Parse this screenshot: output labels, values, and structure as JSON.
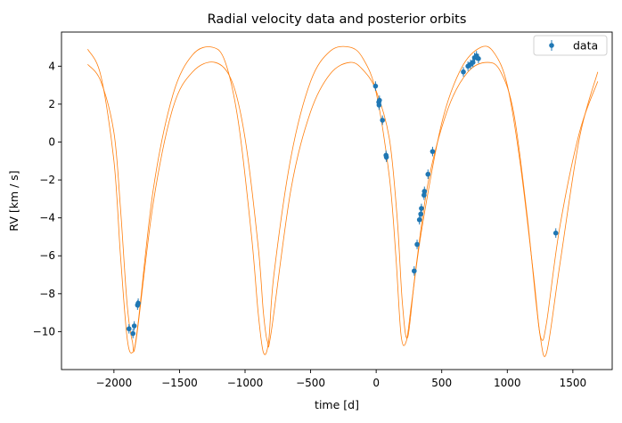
{
  "chart_data": {
    "type": "scatter",
    "title": "Radial velocity data and posterior orbits",
    "xlabel": "time [d]",
    "ylabel": "RV [km / s]",
    "xlim": [
      -2400,
      1800
    ],
    "ylim": [
      -12.0,
      5.8
    ],
    "xticks": [
      -2000,
      -1500,
      -1000,
      -500,
      0,
      500,
      1000,
      1500
    ],
    "yticks": [
      -10,
      -8,
      -6,
      -4,
      -2,
      0,
      2,
      4
    ],
    "grid": false,
    "legend": {
      "position": "top-right",
      "entries": [
        "data"
      ]
    },
    "colors": {
      "data": "#1f77b4",
      "orbits": "#ff7f0e"
    },
    "series": [
      {
        "name": "data",
        "kind": "errorbar",
        "points": [
          {
            "x": -1885,
            "y": -9.85,
            "err": 0.25
          },
          {
            "x": -1855,
            "y": -10.1,
            "err": 0.25
          },
          {
            "x": -1845,
            "y": -9.7,
            "err": 0.25
          },
          {
            "x": -1820,
            "y": -8.6,
            "err": 0.25
          },
          {
            "x": -1815,
            "y": -8.5,
            "err": 0.25
          },
          {
            "x": -5,
            "y": 2.95,
            "err": 0.25
          },
          {
            "x": 20,
            "y": 2.1,
            "err": 0.25
          },
          {
            "x": 22,
            "y": 1.95,
            "err": 0.25
          },
          {
            "x": 25,
            "y": 2.2,
            "err": 0.25
          },
          {
            "x": 48,
            "y": 1.15,
            "err": 0.25
          },
          {
            "x": 75,
            "y": -0.7,
            "err": 0.25
          },
          {
            "x": 78,
            "y": -0.8,
            "err": 0.25
          },
          {
            "x": 290,
            "y": -6.8,
            "err": 0.25
          },
          {
            "x": 312,
            "y": -5.4,
            "err": 0.25
          },
          {
            "x": 330,
            "y": -4.1,
            "err": 0.25
          },
          {
            "x": 340,
            "y": -3.8,
            "err": 0.25
          },
          {
            "x": 345,
            "y": -3.5,
            "err": 0.25
          },
          {
            "x": 365,
            "y": -2.8,
            "err": 0.25
          },
          {
            "x": 368,
            "y": -2.6,
            "err": 0.25
          },
          {
            "x": 395,
            "y": -1.7,
            "err": 0.25
          },
          {
            "x": 430,
            "y": -0.5,
            "err": 0.25
          },
          {
            "x": 665,
            "y": 3.7,
            "err": 0.25
          },
          {
            "x": 700,
            "y": 4.0,
            "err": 0.25
          },
          {
            "x": 720,
            "y": 4.1,
            "err": 0.25
          },
          {
            "x": 738,
            "y": 4.2,
            "err": 0.25
          },
          {
            "x": 750,
            "y": 4.45,
            "err": 0.25
          },
          {
            "x": 765,
            "y": 4.55,
            "err": 0.25
          },
          {
            "x": 780,
            "y": 4.4,
            "err": 0.25
          },
          {
            "x": 1370,
            "y": -4.8,
            "err": 0.25
          }
        ]
      },
      {
        "name": "",
        "kind": "line",
        "x": [
          -2200,
          -2100,
          -2000,
          -1950,
          -1900,
          -1860,
          -1820,
          -1700,
          -1550,
          -1400,
          -1250,
          -1150,
          -1050,
          -950,
          -900,
          -860,
          -820,
          -780,
          -650,
          -500,
          -350,
          -200,
          -100,
          0,
          100,
          150,
          190,
          230,
          270,
          350,
          500,
          650,
          800,
          900,
          1000,
          1100,
          1200,
          1250,
          1300,
          1400,
          1550,
          1690
        ],
        "y": [
          4.9,
          3.5,
          -1.0,
          -6.0,
          -10.3,
          -11.1,
          -9.8,
          -2.5,
          2.5,
          4.6,
          5.0,
          4.2,
          1.0,
          -5.0,
          -9.0,
          -11.1,
          -10.5,
          -7.0,
          -0.8,
          3.2,
          4.8,
          5.0,
          4.4,
          2.6,
          -1.8,
          -6.0,
          -10.2,
          -10.5,
          -8.5,
          -4.5,
          1.0,
          3.9,
          5.0,
          4.7,
          3.0,
          -1.2,
          -7.0,
          -10.2,
          -11.1,
          -6.5,
          0.2,
          3.7
        ]
      },
      {
        "name": "",
        "kind": "line",
        "x": [
          -2200,
          -2100,
          -2000,
          -1950,
          -1900,
          -1860,
          -1830,
          -1700,
          -1550,
          -1400,
          -1230,
          -1100,
          -1000,
          -900,
          -860,
          -830,
          -800,
          -650,
          -500,
          -350,
          -200,
          -100,
          0,
          100,
          160,
          200,
          240,
          300,
          400,
          550,
          700,
          850,
          950,
          1050,
          1150,
          1220,
          1260,
          1300,
          1400,
          1550,
          1690
        ],
        "y": [
          4.1,
          3.2,
          0.5,
          -3.5,
          -8.5,
          -10.5,
          -10.4,
          -3.2,
          1.8,
          3.7,
          4.2,
          3.2,
          0.2,
          -5.5,
          -9.0,
          -10.5,
          -10.0,
          -2.5,
          1.6,
          3.6,
          4.2,
          3.8,
          2.7,
          0.2,
          -4.0,
          -8.5,
          -10.3,
          -6.8,
          -2.0,
          1.8,
          3.7,
          4.2,
          3.7,
          1.5,
          -3.8,
          -8.5,
          -10.4,
          -9.5,
          -4.5,
          0.5,
          3.2
        ]
      }
    ]
  }
}
